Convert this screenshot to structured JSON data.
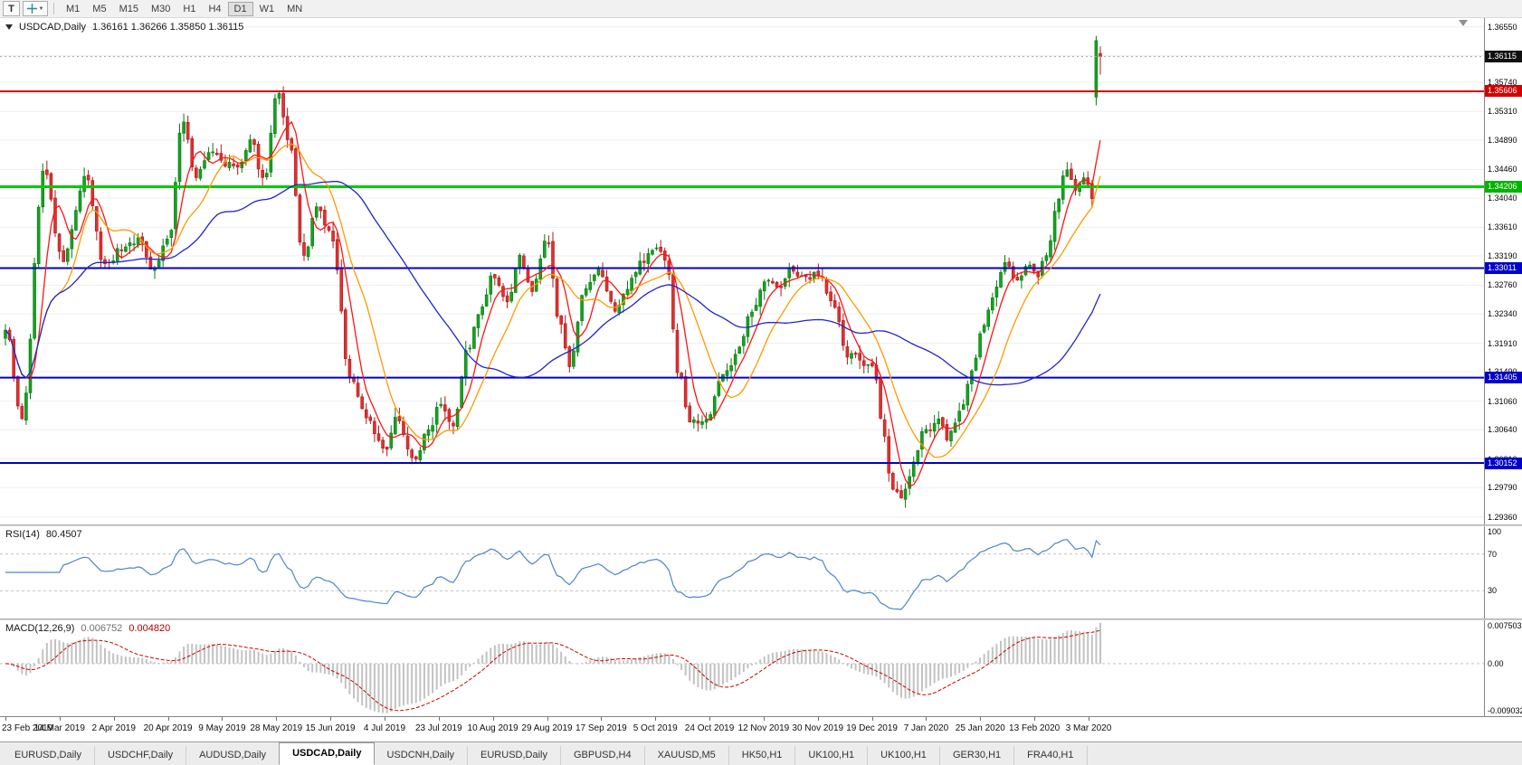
{
  "toolbar": {
    "text_tool": "T",
    "timeframes": [
      "M1",
      "M5",
      "M15",
      "M30",
      "H1",
      "H4",
      "D1",
      "W1",
      "MN"
    ],
    "active_timeframe": "D1"
  },
  "price_pane": {
    "symbol": "USDCAD,Daily",
    "ohlc": "1.36161 1.36266 1.35850 1.36115",
    "scale_ticks": [
      "1.36550",
      "1.36130",
      "1.35740",
      "1.35310",
      "1.34890",
      "1.34460",
      "1.34040",
      "1.33610",
      "1.33190",
      "1.32760",
      "1.32340",
      "1.31910",
      "1.31490",
      "1.31060",
      "1.30640",
      "1.30210",
      "1.29790",
      "1.29360"
    ]
  },
  "levels": [
    {
      "label": "1.36115",
      "value": 1.36115,
      "style": "dotted",
      "line_color": "#a6a6a6",
      "tag_bg": "#111111",
      "tag_fg": "#ffffff",
      "width": 1
    },
    {
      "label": "1.35606",
      "value": 1.35606,
      "style": "solid",
      "line_color": "#d40000",
      "tag_bg": "#d40000",
      "tag_fg": "#ffffff",
      "width": 2
    },
    {
      "label": "1.34206",
      "value": 1.34206,
      "style": "solid",
      "line_color": "#00ca00",
      "tag_bg": "#00b400",
      "tag_fg": "#ffffff",
      "width": 3
    },
    {
      "label": "1.33011",
      "value": 1.33011,
      "style": "solid",
      "line_color": "#0000c8",
      "tag_bg": "#0000c8",
      "tag_fg": "#ffffff",
      "width": 2
    },
    {
      "label": "1.31405",
      "value": 1.31405,
      "style": "solid",
      "line_color": "#0000c8",
      "tag_bg": "#0000c8",
      "tag_fg": "#ffffff",
      "width": 2
    },
    {
      "label": "1.30152",
      "value": 1.30152,
      "style": "solid",
      "line_color": "#0000c8",
      "tag_bg": "#0000c8",
      "tag_fg": "#ffffff",
      "width": 2
    }
  ],
  "rsi_pane": {
    "label": "RSI(14)",
    "value": "80.4507",
    "ticks": [
      {
        "v": 100,
        "label": "100"
      },
      {
        "v": 70,
        "label": "70"
      },
      {
        "v": 30,
        "label": "30"
      }
    ]
  },
  "macd_pane": {
    "label": "MACD(12,26,9)",
    "main_value": "0.006752",
    "signal_value": "0.004820",
    "tick_top": "0.007503",
    "tick_zero": "0.00",
    "tick_bottom": "-0.009032"
  },
  "date_axis": [
    "23 Feb 2019",
    "14 Mar 2019",
    "2 Apr 2019",
    "20 Apr 2019",
    "9 May 2019",
    "28 May 2019",
    "15 Jun 2019",
    "4 Jul 2019",
    "23 Jul 2019",
    "10 Aug 2019",
    "29 Aug 2019",
    "17 Sep 2019",
    "5 Oct 2019",
    "24 Oct 2019",
    "12 Nov 2019",
    "30 Nov 2019",
    "19 Dec 2019",
    "7 Jan 2020",
    "25 Jan 2020",
    "13 Feb 2020",
    "3 Mar 2020"
  ],
  "tabs": {
    "items": [
      "EURUSD,Daily",
      "USDCHF,Daily",
      "AUDUSD,Daily",
      "USDCAD,Daily",
      "USDCNH,Daily",
      "EURUSD,Daily",
      "GBPUSD,H4",
      "XAUUSD,M5",
      "HK50,H1",
      "UK100,H1",
      "UK100,H1",
      "GER30,H1",
      "FRA40,H1"
    ],
    "active_index": 3
  },
  "chart_data": {
    "type": "candlestick",
    "symbol": "USDCAD",
    "timeframe": "Daily",
    "price_domain": [
      1.2925,
      1.3668
    ],
    "candle_count": 265,
    "seed": 9,
    "noise": 0.0016,
    "key_levels": [
      1.36115,
      1.35606,
      1.34206,
      1.33011,
      1.31405,
      1.30152
    ],
    "current_ohlc": {
      "open": 1.36161,
      "high": 1.36266,
      "low": 1.3585,
      "close": 1.36115
    },
    "rsi_period": 14,
    "rsi_current": 80.4507,
    "macd_params": [
      12,
      26,
      9
    ],
    "macd_current": {
      "main": 0.006752,
      "signal": 0.00482
    },
    "anchors": [
      [
        0.0,
        1.3215
      ],
      [
        0.015,
        1.3075
      ],
      [
        0.035,
        1.3445
      ],
      [
        0.052,
        1.331
      ],
      [
        0.073,
        1.343
      ],
      [
        0.09,
        1.3305
      ],
      [
        0.105,
        1.333
      ],
      [
        0.12,
        1.3345
      ],
      [
        0.135,
        1.3305
      ],
      [
        0.15,
        1.335
      ],
      [
        0.162,
        1.352
      ],
      [
        0.174,
        1.3435
      ],
      [
        0.188,
        1.347
      ],
      [
        0.2,
        1.3455
      ],
      [
        0.212,
        1.3445
      ],
      [
        0.224,
        1.348
      ],
      [
        0.236,
        1.343
      ],
      [
        0.248,
        1.3555
      ],
      [
        0.26,
        1.347
      ],
      [
        0.272,
        1.331
      ],
      [
        0.284,
        1.3385
      ],
      [
        0.297,
        1.335
      ],
      [
        0.315,
        1.314
      ],
      [
        0.33,
        1.3085
      ],
      [
        0.347,
        1.303
      ],
      [
        0.359,
        1.308
      ],
      [
        0.372,
        1.302
      ],
      [
        0.386,
        1.306
      ],
      [
        0.397,
        1.311
      ],
      [
        0.409,
        1.308
      ],
      [
        0.421,
        1.318
      ],
      [
        0.433,
        1.323
      ],
      [
        0.445,
        1.3285
      ],
      [
        0.457,
        1.3245
      ],
      [
        0.47,
        1.331
      ],
      [
        0.482,
        1.327
      ],
      [
        0.494,
        1.3345
      ],
      [
        0.506,
        1.3215
      ],
      [
        0.516,
        1.3165
      ],
      [
        0.529,
        1.326
      ],
      [
        0.543,
        1.329
      ],
      [
        0.556,
        1.324
      ],
      [
        0.568,
        1.327
      ],
      [
        0.581,
        1.3315
      ],
      [
        0.593,
        1.333
      ],
      [
        0.604,
        1.3315
      ],
      [
        0.614,
        1.315
      ],
      [
        0.626,
        1.3075
      ],
      [
        0.643,
        1.309
      ],
      [
        0.656,
        1.315
      ],
      [
        0.669,
        1.3175
      ],
      [
        0.681,
        1.323
      ],
      [
        0.693,
        1.329
      ],
      [
        0.706,
        1.327
      ],
      [
        0.719,
        1.33
      ],
      [
        0.731,
        1.328
      ],
      [
        0.743,
        1.3295
      ],
      [
        0.756,
        1.325
      ],
      [
        0.769,
        1.317
      ],
      [
        0.781,
        1.3165
      ],
      [
        0.792,
        1.315
      ],
      [
        0.801,
        1.3075
      ],
      [
        0.809,
        1.2985
      ],
      [
        0.819,
        1.2958
      ],
      [
        0.829,
        1.3012
      ],
      [
        0.841,
        1.3065
      ],
      [
        0.851,
        1.3082
      ],
      [
        0.861,
        1.305
      ],
      [
        0.873,
        1.3092
      ],
      [
        0.885,
        1.3162
      ],
      [
        0.892,
        1.3212
      ],
      [
        0.901,
        1.3255
      ],
      [
        0.913,
        1.33
      ],
      [
        0.923,
        1.3285
      ],
      [
        0.933,
        1.3312
      ],
      [
        0.941,
        1.329
      ],
      [
        0.951,
        1.3322
      ],
      [
        0.961,
        1.3388
      ],
      [
        0.969,
        1.3442
      ],
      [
        0.977,
        1.3412
      ],
      [
        0.985,
        1.3442
      ],
      [
        0.993,
        1.3408
      ],
      [
        1.0,
        1.3432
      ]
    ],
    "last_candles": [
      [
        1.3552,
        1.3642,
        1.354,
        1.3635
      ],
      [
        1.36161,
        1.36266,
        1.3585,
        1.36115
      ]
    ],
    "moving_averages": [
      {
        "period": 6,
        "color": "#ff1414"
      },
      {
        "period": 14,
        "color": "#ff9900"
      },
      {
        "period": 45,
        "color": "#2323cc"
      }
    ],
    "colors": {
      "up": "#14a31f",
      "up_border": "#0b7a14",
      "down": "#e03030",
      "down_border": "#b01818",
      "rsi": "#4a86c8",
      "macd_hist": "#c2c2c2",
      "macd_signal": "#cc0000",
      "grid": "#efefef"
    }
  }
}
